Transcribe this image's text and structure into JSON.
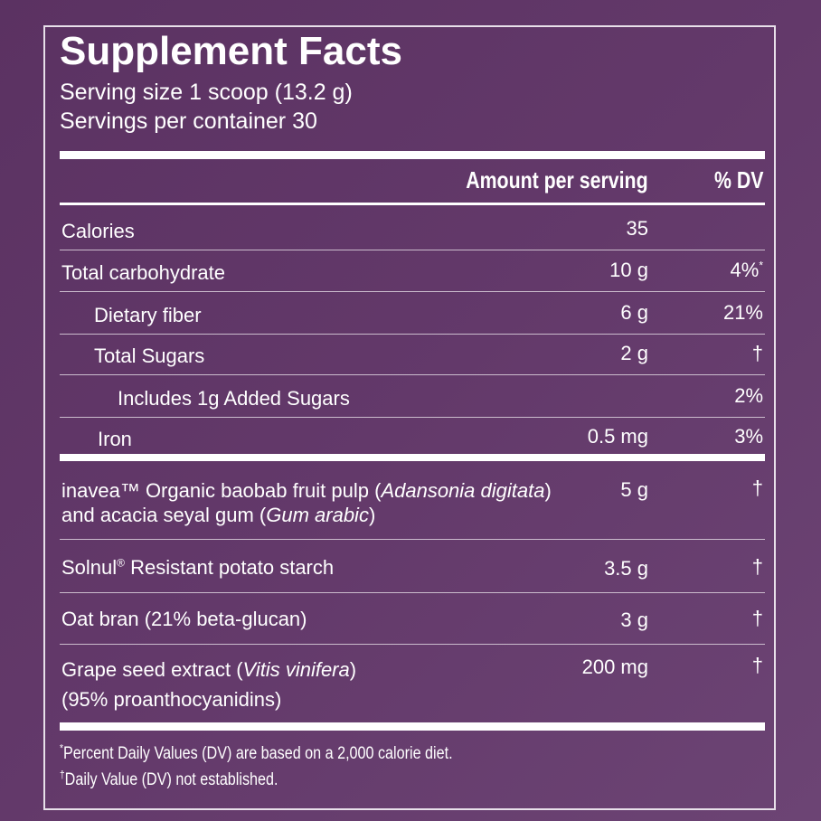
{
  "title": "Supplement Facts",
  "serving_size": "Serving size 1 scoop (13.2 g)",
  "servings_per_container": "Servings per container 30",
  "header": {
    "amount": "Amount per serving",
    "dv": "% DV"
  },
  "rows": [
    {
      "name": "Calories",
      "amount": "35"
    },
    {
      "name": "Total carbohydrate",
      "amount": "10 g",
      "dv": "4%",
      "dv_note": "*"
    },
    {
      "name": "Dietary fiber",
      "amount": "6 g",
      "dv": "21%"
    },
    {
      "name": "Total Sugars",
      "amount": "2 g",
      "dv": "†"
    },
    {
      "name": "Includes 1g Added Sugars",
      "dv": "2%"
    },
    {
      "name": "Iron",
      "amount": "0.5 mg",
      "dv": "3%"
    }
  ],
  "ingredients": [
    {
      "name": [
        "inavea™ Organic baobab fruit pulp (",
        "Adansonia digitata",
        ")",
        "and acacia seyal gum (",
        "Gum arabic",
        ")"
      ],
      "amount": "5 g",
      "dv": "†"
    },
    {
      "name": [
        "Solnul",
        "®",
        " Resistant potato starch"
      ],
      "amount": "3.5 g",
      "dv": "†"
    },
    {
      "name": [
        "Oat bran (21% beta-glucan)"
      ],
      "amount": "3 g",
      "dv": "†"
    },
    {
      "name": [
        "Grape seed extract (",
        "Vitis vinifera",
        ")",
        "(95% proanthocyanidins)"
      ],
      "amount": "200 mg",
      "dv": "†"
    }
  ],
  "footnotes": [
    {
      "symbol": "*",
      "text": "Percent Daily Values (DV) are based on a 2,000 calorie diet."
    },
    {
      "symbol": "†",
      "text": "Daily Value (DV) not established."
    }
  ]
}
